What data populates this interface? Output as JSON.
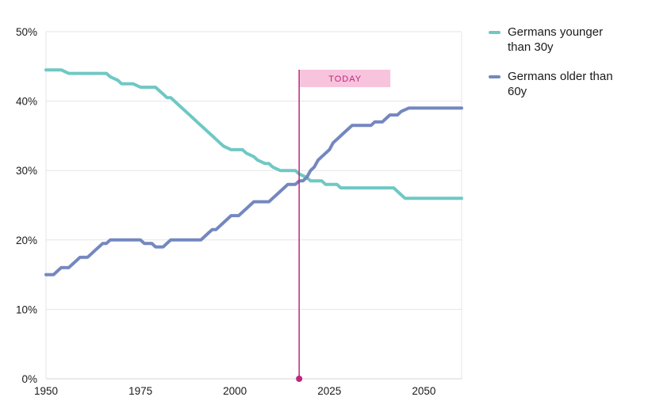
{
  "chart_data": {
    "type": "line",
    "title": "",
    "xlabel": "",
    "ylabel": "",
    "xlim": [
      1950,
      2060
    ],
    "ylim": [
      0,
      50
    ],
    "grid": true,
    "legend_position": "right",
    "x_ticks": [
      {
        "value": 1950,
        "label": "1950"
      },
      {
        "value": 1975,
        "label": "1975"
      },
      {
        "value": 2000,
        "label": "2000"
      },
      {
        "value": 2025,
        "label": "2025"
      },
      {
        "value": 2050,
        "label": "2050"
      }
    ],
    "y_ticks": [
      {
        "value": 0,
        "label": "0%"
      },
      {
        "value": 10,
        "label": "10%"
      },
      {
        "value": 20,
        "label": "20%"
      },
      {
        "value": 30,
        "label": "30%"
      },
      {
        "value": 40,
        "label": "40%"
      },
      {
        "value": 50,
        "label": "50%"
      }
    ],
    "annotation": {
      "label": "TODAY",
      "x": 2017,
      "line_color": "#c0247e",
      "badge_bg": "#f8c4dd",
      "text_color": "#c0247e"
    },
    "series": [
      {
        "name": "Germans younger than 30y",
        "color": "#6fc8c4",
        "points": [
          [
            1950,
            44.5
          ],
          [
            1954,
            44.5
          ],
          [
            1956,
            44
          ],
          [
            1966,
            44
          ],
          [
            1967,
            43.5
          ],
          [
            1969,
            43
          ],
          [
            1970,
            42.5
          ],
          [
            1973,
            42.5
          ],
          [
            1975,
            42
          ],
          [
            1979,
            42
          ],
          [
            1980,
            41.5
          ],
          [
            1981,
            41
          ],
          [
            1982,
            40.5
          ],
          [
            1983,
            40.5
          ],
          [
            1984,
            40
          ],
          [
            1985,
            39.5
          ],
          [
            1986,
            39
          ],
          [
            1987,
            38.5
          ],
          [
            1988,
            38
          ],
          [
            1989,
            37.5
          ],
          [
            1990,
            37
          ],
          [
            1991,
            36.5
          ],
          [
            1992,
            36
          ],
          [
            1993,
            35.5
          ],
          [
            1994,
            35
          ],
          [
            1995,
            34.5
          ],
          [
            1996,
            34
          ],
          [
            1997,
            33.5
          ],
          [
            1999,
            33
          ],
          [
            2002,
            33
          ],
          [
            2003,
            32.5
          ],
          [
            2005,
            32
          ],
          [
            2006,
            31.5
          ],
          [
            2008,
            31
          ],
          [
            2009,
            31
          ],
          [
            2010,
            30.5
          ],
          [
            2012,
            30
          ],
          [
            2016,
            30
          ],
          [
            2017,
            29.5
          ],
          [
            2019,
            29
          ],
          [
            2020,
            28.5
          ],
          [
            2023,
            28.5
          ],
          [
            2024,
            28
          ],
          [
            2027,
            28
          ],
          [
            2028,
            27.5
          ],
          [
            2042,
            27.5
          ],
          [
            2044,
            26.5
          ],
          [
            2045,
            26
          ],
          [
            2060,
            26
          ]
        ]
      },
      {
        "name": "Germans older than 60y",
        "color": "#7487bf",
        "points": [
          [
            1950,
            15
          ],
          [
            1952,
            15
          ],
          [
            1953,
            15.5
          ],
          [
            1954,
            16
          ],
          [
            1956,
            16
          ],
          [
            1957,
            16.5
          ],
          [
            1958,
            17
          ],
          [
            1959,
            17.5
          ],
          [
            1961,
            17.5
          ],
          [
            1962,
            18
          ],
          [
            1963,
            18.5
          ],
          [
            1964,
            19
          ],
          [
            1965,
            19.5
          ],
          [
            1966,
            19.5
          ],
          [
            1967,
            20
          ],
          [
            1975,
            20
          ],
          [
            1976,
            19.5
          ],
          [
            1978,
            19.5
          ],
          [
            1979,
            19
          ],
          [
            1981,
            19
          ],
          [
            1982,
            19.5
          ],
          [
            1983,
            20
          ],
          [
            1991,
            20
          ],
          [
            1992,
            20.5
          ],
          [
            1993,
            21
          ],
          [
            1994,
            21.5
          ],
          [
            1995,
            21.5
          ],
          [
            1996,
            22
          ],
          [
            1997,
            22.5
          ],
          [
            1998,
            23
          ],
          [
            1999,
            23.5
          ],
          [
            2001,
            23.5
          ],
          [
            2002,
            24
          ],
          [
            2003,
            24.5
          ],
          [
            2004,
            25
          ],
          [
            2005,
            25.5
          ],
          [
            2009,
            25.5
          ],
          [
            2010,
            26
          ],
          [
            2011,
            26.5
          ],
          [
            2012,
            27
          ],
          [
            2013,
            27.5
          ],
          [
            2014,
            28
          ],
          [
            2016,
            28
          ],
          [
            2017,
            28.5
          ],
          [
            2018,
            28.5
          ],
          [
            2019,
            29
          ],
          [
            2020,
            30
          ],
          [
            2021,
            30.5
          ],
          [
            2022,
            31.5
          ],
          [
            2023,
            32
          ],
          [
            2024,
            32.5
          ],
          [
            2025,
            33
          ],
          [
            2026,
            34
          ],
          [
            2027,
            34.5
          ],
          [
            2028,
            35
          ],
          [
            2029,
            35.5
          ],
          [
            2030,
            36
          ],
          [
            2031,
            36.5
          ],
          [
            2036,
            36.5
          ],
          [
            2037,
            37
          ],
          [
            2039,
            37
          ],
          [
            2040,
            37.5
          ],
          [
            2041,
            38
          ],
          [
            2043,
            38
          ],
          [
            2044,
            38.5
          ],
          [
            2046,
            39
          ],
          [
            2060,
            39
          ]
        ]
      }
    ],
    "grid_color": "#e5e5e5",
    "axis_line_color": "#d4d4d4"
  },
  "legend": {
    "items": [
      {
        "label": "Germans younger than 30y"
      },
      {
        "label": "Germans older than 60y"
      }
    ]
  }
}
